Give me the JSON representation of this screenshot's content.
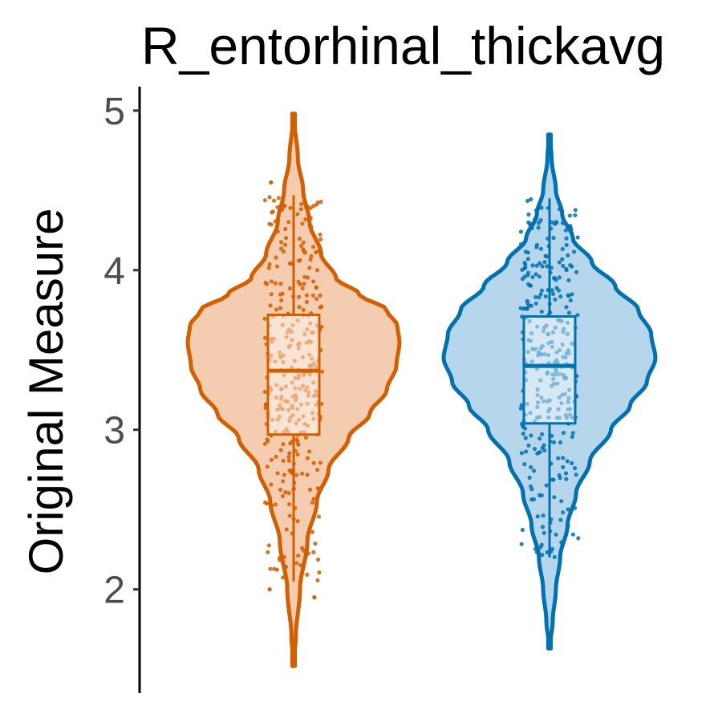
{
  "chart_data": {
    "type": "violin",
    "title": "R_entorhinal_thickavg",
    "ylabel": "Original Measure",
    "xlabel": "",
    "ylim": [
      1.35,
      5.15
    ],
    "yticks": [
      2,
      3,
      4,
      5
    ],
    "grid": false,
    "legend": "none",
    "series": [
      {
        "color": "#D55E00",
        "fill": "#F4CDB0",
        "violin": {
          "min": 1.52,
          "max": 4.98,
          "profile": [
            [
              1.52,
              0.0
            ],
            [
              1.7,
              0.02
            ],
            [
              2.0,
              0.06
            ],
            [
              2.3,
              0.13
            ],
            [
              2.55,
              0.22
            ],
            [
              2.75,
              0.33
            ],
            [
              2.95,
              0.52
            ],
            [
              3.1,
              0.72
            ],
            [
              3.25,
              0.88
            ],
            [
              3.4,
              0.97
            ],
            [
              3.55,
              1.0
            ],
            [
              3.65,
              0.98
            ],
            [
              3.75,
              0.88
            ],
            [
              3.85,
              0.62
            ],
            [
              3.95,
              0.4
            ],
            [
              4.1,
              0.26
            ],
            [
              4.3,
              0.15
            ],
            [
              4.5,
              0.09
            ],
            [
              4.7,
              0.04
            ],
            [
              4.98,
              0.0
            ]
          ]
        },
        "box": {
          "whisker_low": 2.05,
          "q1": 2.97,
          "median": 3.37,
          "q3": 3.72,
          "whisker_high": 4.47
        },
        "outliers": [
          2.0,
          1.95,
          2.08,
          4.55
        ]
      },
      {
        "color": "#0072B2",
        "fill": "#B5D6EB",
        "violin": {
          "min": 1.63,
          "max": 4.85,
          "profile": [
            [
              1.63,
              0.0
            ],
            [
              1.8,
              0.03
            ],
            [
              2.0,
              0.06
            ],
            [
              2.2,
              0.1
            ],
            [
              2.4,
              0.17
            ],
            [
              2.6,
              0.25
            ],
            [
              2.8,
              0.38
            ],
            [
              3.0,
              0.58
            ],
            [
              3.15,
              0.76
            ],
            [
              3.3,
              0.92
            ],
            [
              3.45,
              1.0
            ],
            [
              3.6,
              0.96
            ],
            [
              3.75,
              0.84
            ],
            [
              3.9,
              0.62
            ],
            [
              4.05,
              0.4
            ],
            [
              4.2,
              0.22
            ],
            [
              4.35,
              0.12
            ],
            [
              4.5,
              0.06
            ],
            [
              4.7,
              0.02
            ],
            [
              4.85,
              0.0
            ]
          ]
        },
        "box": {
          "whisker_low": 2.2,
          "q1": 3.04,
          "median": 3.4,
          "q3": 3.71,
          "whisker_high": 4.45
        },
        "outliers": []
      }
    ]
  }
}
